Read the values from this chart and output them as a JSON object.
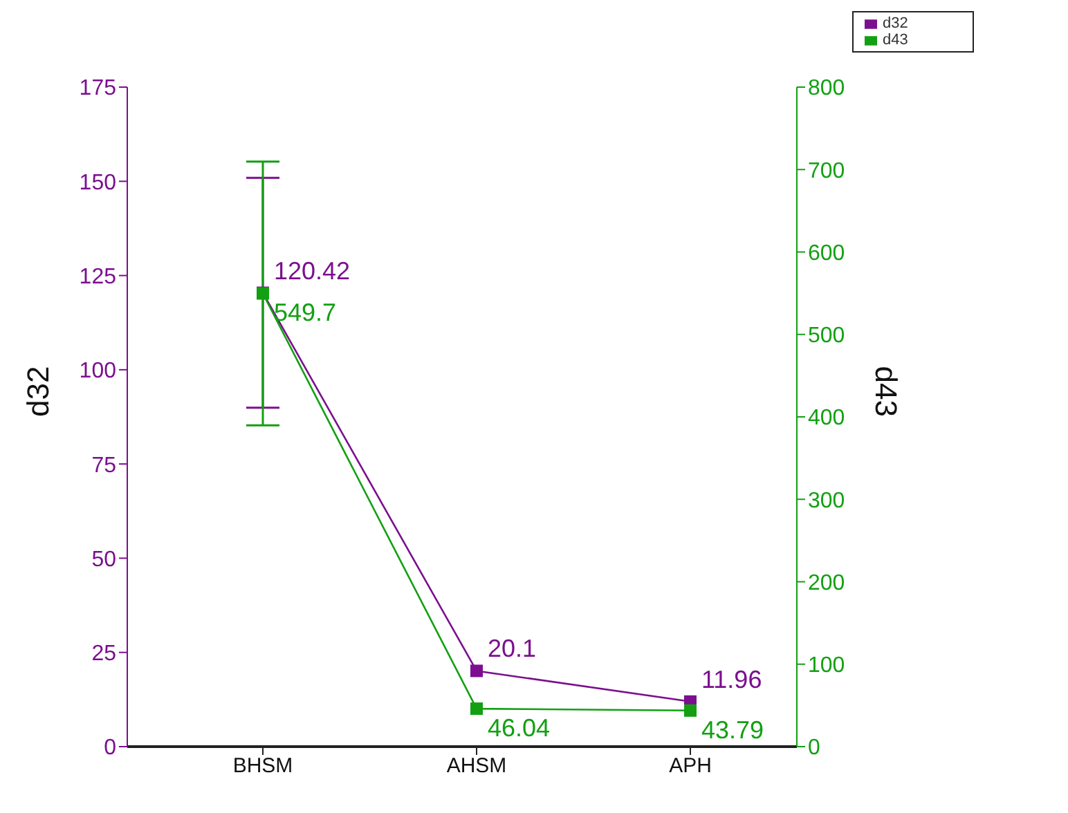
{
  "chart_data": {
    "type": "line",
    "categories": [
      "BHSM",
      "AHSM",
      "APH"
    ],
    "ylabel": "d32",
    "y2label": "d43",
    "series": [
      {
        "name": "d32",
        "color": "#7b0f8f",
        "values": [
          120.42,
          20.1,
          11.96
        ],
        "errors": [
          30.5,
          null,
          null
        ]
      },
      {
        "name": "d43",
        "color": "#12a012",
        "values": [
          549.7,
          46.04,
          43.79
        ],
        "errors": [
          160,
          null,
          null
        ],
        "axis": "y2"
      }
    ],
    "ylim": [
      0,
      175
    ],
    "yticks": [
      0,
      25,
      50,
      75,
      100,
      125,
      150,
      175
    ],
    "y2lim": [
      0,
      800
    ],
    "y2ticks": [
      0,
      100,
      200,
      300,
      400,
      500,
      600,
      700,
      800
    ],
    "marker": "square",
    "data_labels": true,
    "legend": "top right",
    "grid": false
  }
}
